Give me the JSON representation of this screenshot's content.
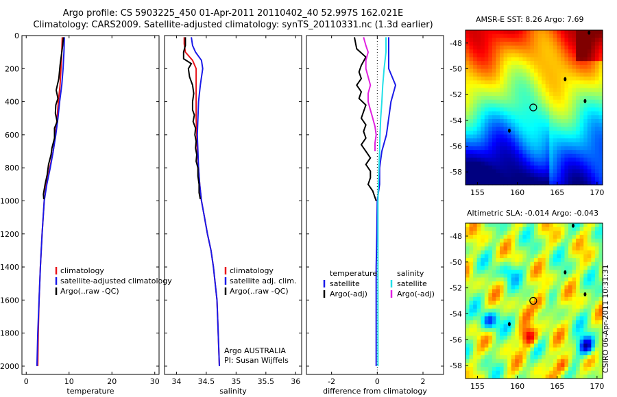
{
  "titles": {
    "line1": "Argo profile: CS 5903225_450 01-Apr-2011 20110402_40 52.997S 162.021E",
    "line2": "Climatology: CARS2009. Satellite-adjusted climatology: synTS_20110331.nc (1.3d earlier)"
  },
  "depth_axis": {
    "range": [
      0,
      2050
    ],
    "ticks": [
      0,
      200,
      400,
      600,
      800,
      1000,
      1200,
      1400,
      1600,
      1800,
      2000
    ]
  },
  "chart_data": [
    {
      "type": "line",
      "name": "temperature",
      "xlabel": "temperature",
      "ylabel": "",
      "xlim": [
        -1,
        31
      ],
      "ylim": [
        2050,
        0
      ],
      "xticks": [
        0,
        10,
        20,
        30
      ],
      "series": [
        {
          "name": "climatology",
          "color": "#e8141a",
          "points": [
            [
              8.4,
              10
            ],
            [
              8.3,
              100
            ],
            [
              8.1,
              200
            ],
            [
              7.9,
              300
            ],
            [
              7.5,
              400
            ],
            [
              7.2,
              500
            ],
            [
              6.8,
              600
            ],
            [
              6.3,
              700
            ],
            [
              5.5,
              800
            ],
            [
              4.7,
              900
            ],
            [
              4.2,
              1000
            ],
            [
              3.7,
              1200
            ],
            [
              3.3,
              1400
            ],
            [
              3.0,
              1600
            ],
            [
              2.8,
              1800
            ],
            [
              2.7,
              2000
            ]
          ]
        },
        {
          "name": "satellite-adjusted climatology",
          "color": "#1a1ae8",
          "points": [
            [
              8.9,
              10
            ],
            [
              8.8,
              100
            ],
            [
              8.6,
              200
            ],
            [
              8.3,
              300
            ],
            [
              7.8,
              400
            ],
            [
              7.4,
              500
            ],
            [
              6.9,
              600
            ],
            [
              6.3,
              700
            ],
            [
              5.6,
              800
            ],
            [
              4.8,
              900
            ],
            [
              4.2,
              1000
            ],
            [
              3.7,
              1200
            ],
            [
              3.3,
              1400
            ],
            [
              3.0,
              1600
            ],
            [
              2.7,
              1800
            ],
            [
              2.5,
              2000
            ]
          ]
        },
        {
          "name": "Argo(..raw -QC)",
          "color": "#000000",
          "points": [
            [
              8.7,
              10
            ],
            [
              8.5,
              60
            ],
            [
              8.2,
              120
            ],
            [
              7.9,
              180
            ],
            [
              7.6,
              260
            ],
            [
              7.0,
              330
            ],
            [
              7.4,
              380
            ],
            [
              6.9,
              420
            ],
            [
              6.8,
              470
            ],
            [
              7.2,
              520
            ],
            [
              6.6,
              560
            ],
            [
              6.6,
              620
            ],
            [
              6.0,
              680
            ],
            [
              5.8,
              720
            ],
            [
              5.2,
              780
            ],
            [
              4.9,
              840
            ],
            [
              4.4,
              900
            ],
            [
              4.0,
              960
            ],
            [
              4.1,
              990
            ]
          ]
        }
      ],
      "legend": [
        "climatology",
        "satellite-adjusted climatology",
        "Argo(..raw -QC)"
      ]
    },
    {
      "type": "line",
      "name": "salinity",
      "xlabel": "salinity",
      "ylabel": "",
      "xlim": [
        33.8,
        36.1
      ],
      "ylim": [
        2050,
        0
      ],
      "xticks": [
        34,
        34.5,
        35,
        35.5,
        36
      ],
      "series": [
        {
          "name": "climatology",
          "color": "#e8141a",
          "points": [
            [
              34.13,
              10
            ],
            [
              34.13,
              50
            ],
            [
              34.15,
              100
            ],
            [
              34.27,
              150
            ],
            [
              34.33,
              200
            ],
            [
              34.33,
              300
            ],
            [
              34.33,
              400
            ],
            [
              34.33,
              500
            ],
            [
              34.34,
              600
            ],
            [
              34.35,
              700
            ],
            [
              34.37,
              800
            ],
            [
              34.39,
              900
            ],
            [
              34.42,
              1000
            ],
            [
              34.47,
              1100
            ],
            [
              34.52,
              1200
            ],
            [
              34.58,
              1300
            ],
            [
              34.62,
              1400
            ],
            [
              34.65,
              1500
            ],
            [
              34.68,
              1600
            ],
            [
              34.7,
              1800
            ],
            [
              34.72,
              2000
            ]
          ]
        },
        {
          "name": "satellite adj. clim.",
          "color": "#1a1ae8",
          "points": [
            [
              34.25,
              10
            ],
            [
              34.27,
              60
            ],
            [
              34.32,
              100
            ],
            [
              34.42,
              150
            ],
            [
              34.44,
              200
            ],
            [
              34.4,
              300
            ],
            [
              34.37,
              400
            ],
            [
              34.36,
              500
            ],
            [
              34.35,
              600
            ],
            [
              34.36,
              700
            ],
            [
              34.37,
              800
            ],
            [
              34.39,
              900
            ],
            [
              34.42,
              1000
            ],
            [
              34.47,
              1100
            ],
            [
              34.52,
              1200
            ],
            [
              34.58,
              1300
            ],
            [
              34.62,
              1400
            ],
            [
              34.65,
              1500
            ],
            [
              34.68,
              1600
            ],
            [
              34.7,
              1800
            ],
            [
              34.72,
              2000
            ]
          ]
        },
        {
          "name": "Argo(..raw -QC)",
          "color": "#000000",
          "points": [
            [
              34.15,
              10
            ],
            [
              34.15,
              60
            ],
            [
              34.12,
              100
            ],
            [
              34.12,
              140
            ],
            [
              34.25,
              170
            ],
            [
              34.2,
              200
            ],
            [
              34.22,
              250
            ],
            [
              34.27,
              300
            ],
            [
              34.29,
              350
            ],
            [
              34.27,
              400
            ],
            [
              34.27,
              450
            ],
            [
              34.3,
              480
            ],
            [
              34.28,
              520
            ],
            [
              34.32,
              560
            ],
            [
              34.31,
              600
            ],
            [
              34.33,
              640
            ],
            [
              34.32,
              680
            ],
            [
              34.34,
              720
            ],
            [
              34.33,
              760
            ],
            [
              34.36,
              800
            ],
            [
              34.36,
              850
            ],
            [
              34.38,
              900
            ],
            [
              34.38,
              950
            ],
            [
              34.4,
              990
            ]
          ]
        }
      ],
      "legend": [
        "climatology",
        "satellite adj. clim.",
        "Argo(..raw -QC)"
      ],
      "annotation": [
        "Argo AUSTRALIA",
        "PI: Susan Wijffels"
      ]
    },
    {
      "type": "line",
      "name": "difference",
      "xlabel": "difference from climatology",
      "ylabel": "",
      "xlim": [
        -3.1,
        2.9
      ],
      "ylim": [
        2050,
        0
      ],
      "xticks": [
        -2,
        0,
        2
      ],
      "series": [
        {
          "name": "temperature satellite",
          "color": "#1a1ae8",
          "points": [
            [
              0.5,
              10
            ],
            [
              0.5,
              100
            ],
            [
              0.5,
              200
            ],
            [
              0.8,
              300
            ],
            [
              0.6,
              400
            ],
            [
              0.5,
              500
            ],
            [
              0.4,
              600
            ],
            [
              0.2,
              700
            ],
            [
              0.1,
              800
            ],
            [
              0.1,
              900
            ],
            [
              0.0,
              1000
            ],
            [
              -0.02,
              1200
            ],
            [
              -0.05,
              1400
            ],
            [
              -0.05,
              1600
            ],
            [
              -0.05,
              1800
            ],
            [
              -0.05,
              2000
            ]
          ]
        },
        {
          "name": "salinity satellite",
          "color": "#22e0e8",
          "points": [
            [
              0.38,
              10
            ],
            [
              0.38,
              100
            ],
            [
              0.3,
              200
            ],
            [
              0.24,
              300
            ],
            [
              0.2,
              400
            ],
            [
              0.15,
              500
            ],
            [
              0.12,
              600
            ],
            [
              0.1,
              700
            ],
            [
              0.07,
              800
            ],
            [
              0.05,
              900
            ],
            [
              0.03,
              1000
            ],
            [
              0.03,
              1200
            ],
            [
              0.03,
              1400
            ],
            [
              0.03,
              1600
            ],
            [
              0.03,
              1800
            ],
            [
              0.03,
              2000
            ]
          ]
        },
        {
          "name": "temperature Argo(-adj)",
          "color": "#000000",
          "points": [
            [
              -1.0,
              10
            ],
            [
              -0.9,
              80
            ],
            [
              -0.5,
              130
            ],
            [
              -0.7,
              180
            ],
            [
              -0.8,
              220
            ],
            [
              -0.7,
              260
            ],
            [
              -0.9,
              300
            ],
            [
              -0.7,
              340
            ],
            [
              -0.8,
              380
            ],
            [
              -0.5,
              420
            ],
            [
              -0.6,
              460
            ],
            [
              -0.7,
              500
            ],
            [
              -0.5,
              540
            ],
            [
              -0.6,
              580
            ],
            [
              -0.5,
              620
            ],
            [
              -0.7,
              660
            ],
            [
              -0.5,
              700
            ],
            [
              -0.3,
              740
            ],
            [
              -0.5,
              780
            ],
            [
              -0.3,
              820
            ],
            [
              -0.3,
              860
            ],
            [
              -0.4,
              900
            ],
            [
              -0.2,
              940
            ],
            [
              -0.1,
              980
            ],
            [
              -0.05,
              1000
            ]
          ]
        },
        {
          "name": "salinity Argo(-adj)",
          "color": "#e020e0",
          "points": [
            [
              -0.6,
              10
            ],
            [
              -0.5,
              60
            ],
            [
              -0.4,
              100
            ],
            [
              -0.5,
              150
            ],
            [
              -0.5,
              200
            ],
            [
              -0.4,
              250
            ],
            [
              -0.3,
              300
            ],
            [
              -0.4,
              350
            ],
            [
              -0.4,
              400
            ],
            [
              -0.3,
              450
            ],
            [
              -0.2,
              500
            ],
            [
              -0.1,
              550
            ],
            [
              -0.05,
              600
            ],
            [
              -0.1,
              650
            ],
            [
              -0.1,
              700
            ]
          ]
        }
      ],
      "legend_groups": [
        {
          "header": "temperature",
          "items": [
            "satellite",
            "Argo(-adj)"
          ]
        },
        {
          "header": "salinity",
          "items": [
            "satellite",
            "Argo(-adj)"
          ]
        }
      ]
    },
    {
      "type": "heatmap",
      "name": "sst-map",
      "title": "AMSR-E SST: 8.26  Argo: 7.69",
      "xlim": [
        153.5,
        170.7
      ],
      "ylim": [
        -59,
        -47
      ],
      "xticks": [
        155,
        160,
        165,
        170
      ],
      "yticks": [
        -48,
        -50,
        -52,
        -54,
        -56,
        -58
      ],
      "marker": {
        "lon": 162.0,
        "lat": -53.0
      },
      "land": [
        [
          166.0,
          -50.8
        ],
        [
          159.0,
          -54.8
        ],
        [
          168.5,
          -52.5
        ],
        [
          169.0,
          -47.2
        ]
      ]
    },
    {
      "type": "heatmap",
      "name": "sla-map",
      "title": "Altimetric SLA: -0.014  Argo: -0.043",
      "xlim": [
        153.5,
        170.7
      ],
      "ylim": [
        -59,
        -47
      ],
      "xticks": [
        155,
        160,
        165,
        170
      ],
      "yticks": [
        -48,
        -50,
        -52,
        -54,
        -56,
        -58
      ],
      "marker": {
        "lon": 162.0,
        "lat": -53.0
      },
      "land": [
        [
          166.0,
          -50.8
        ],
        [
          159.0,
          -54.8
        ],
        [
          168.5,
          -52.5
        ],
        [
          167.0,
          -47.2
        ]
      ],
      "credit": "CSIRO 06-Apr-2011 10:31:31"
    }
  ]
}
